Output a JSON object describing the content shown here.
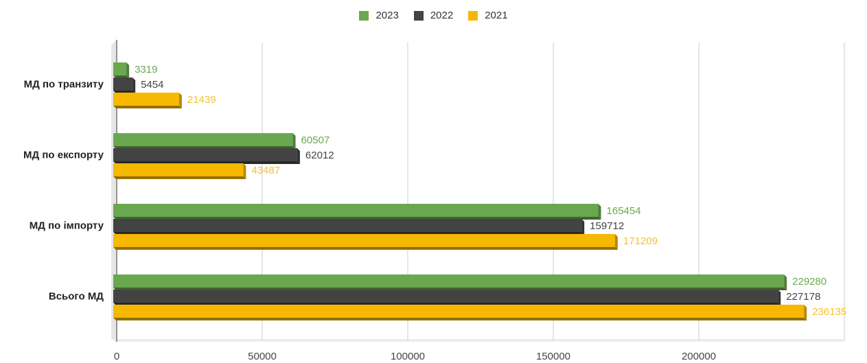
{
  "chart_data": {
    "type": "bar",
    "orientation": "horizontal",
    "categories": [
      "МД по транзиту",
      "МД по експорту",
      "МД по імпорту",
      "Всього МД"
    ],
    "series": [
      {
        "name": "2023",
        "color": "#6aa84f",
        "label_color": "#6aa84f",
        "values": [
          3319,
          60507,
          165454,
          229280
        ]
      },
      {
        "name": "2022",
        "color": "#434343",
        "label_color": "#434343",
        "values": [
          5454,
          62012,
          159712,
          227178
        ]
      },
      {
        "name": "2021",
        "color": "#f6b800",
        "label_color": "#f1c232",
        "values": [
          21439,
          43487,
          171209,
          236135
        ]
      }
    ],
    "x_ticks": [
      "0",
      "50000",
      "100000",
      "150000",
      "200000"
    ],
    "xlim": [
      0,
      250000
    ],
    "legend_position": "top-center",
    "grid": true
  }
}
